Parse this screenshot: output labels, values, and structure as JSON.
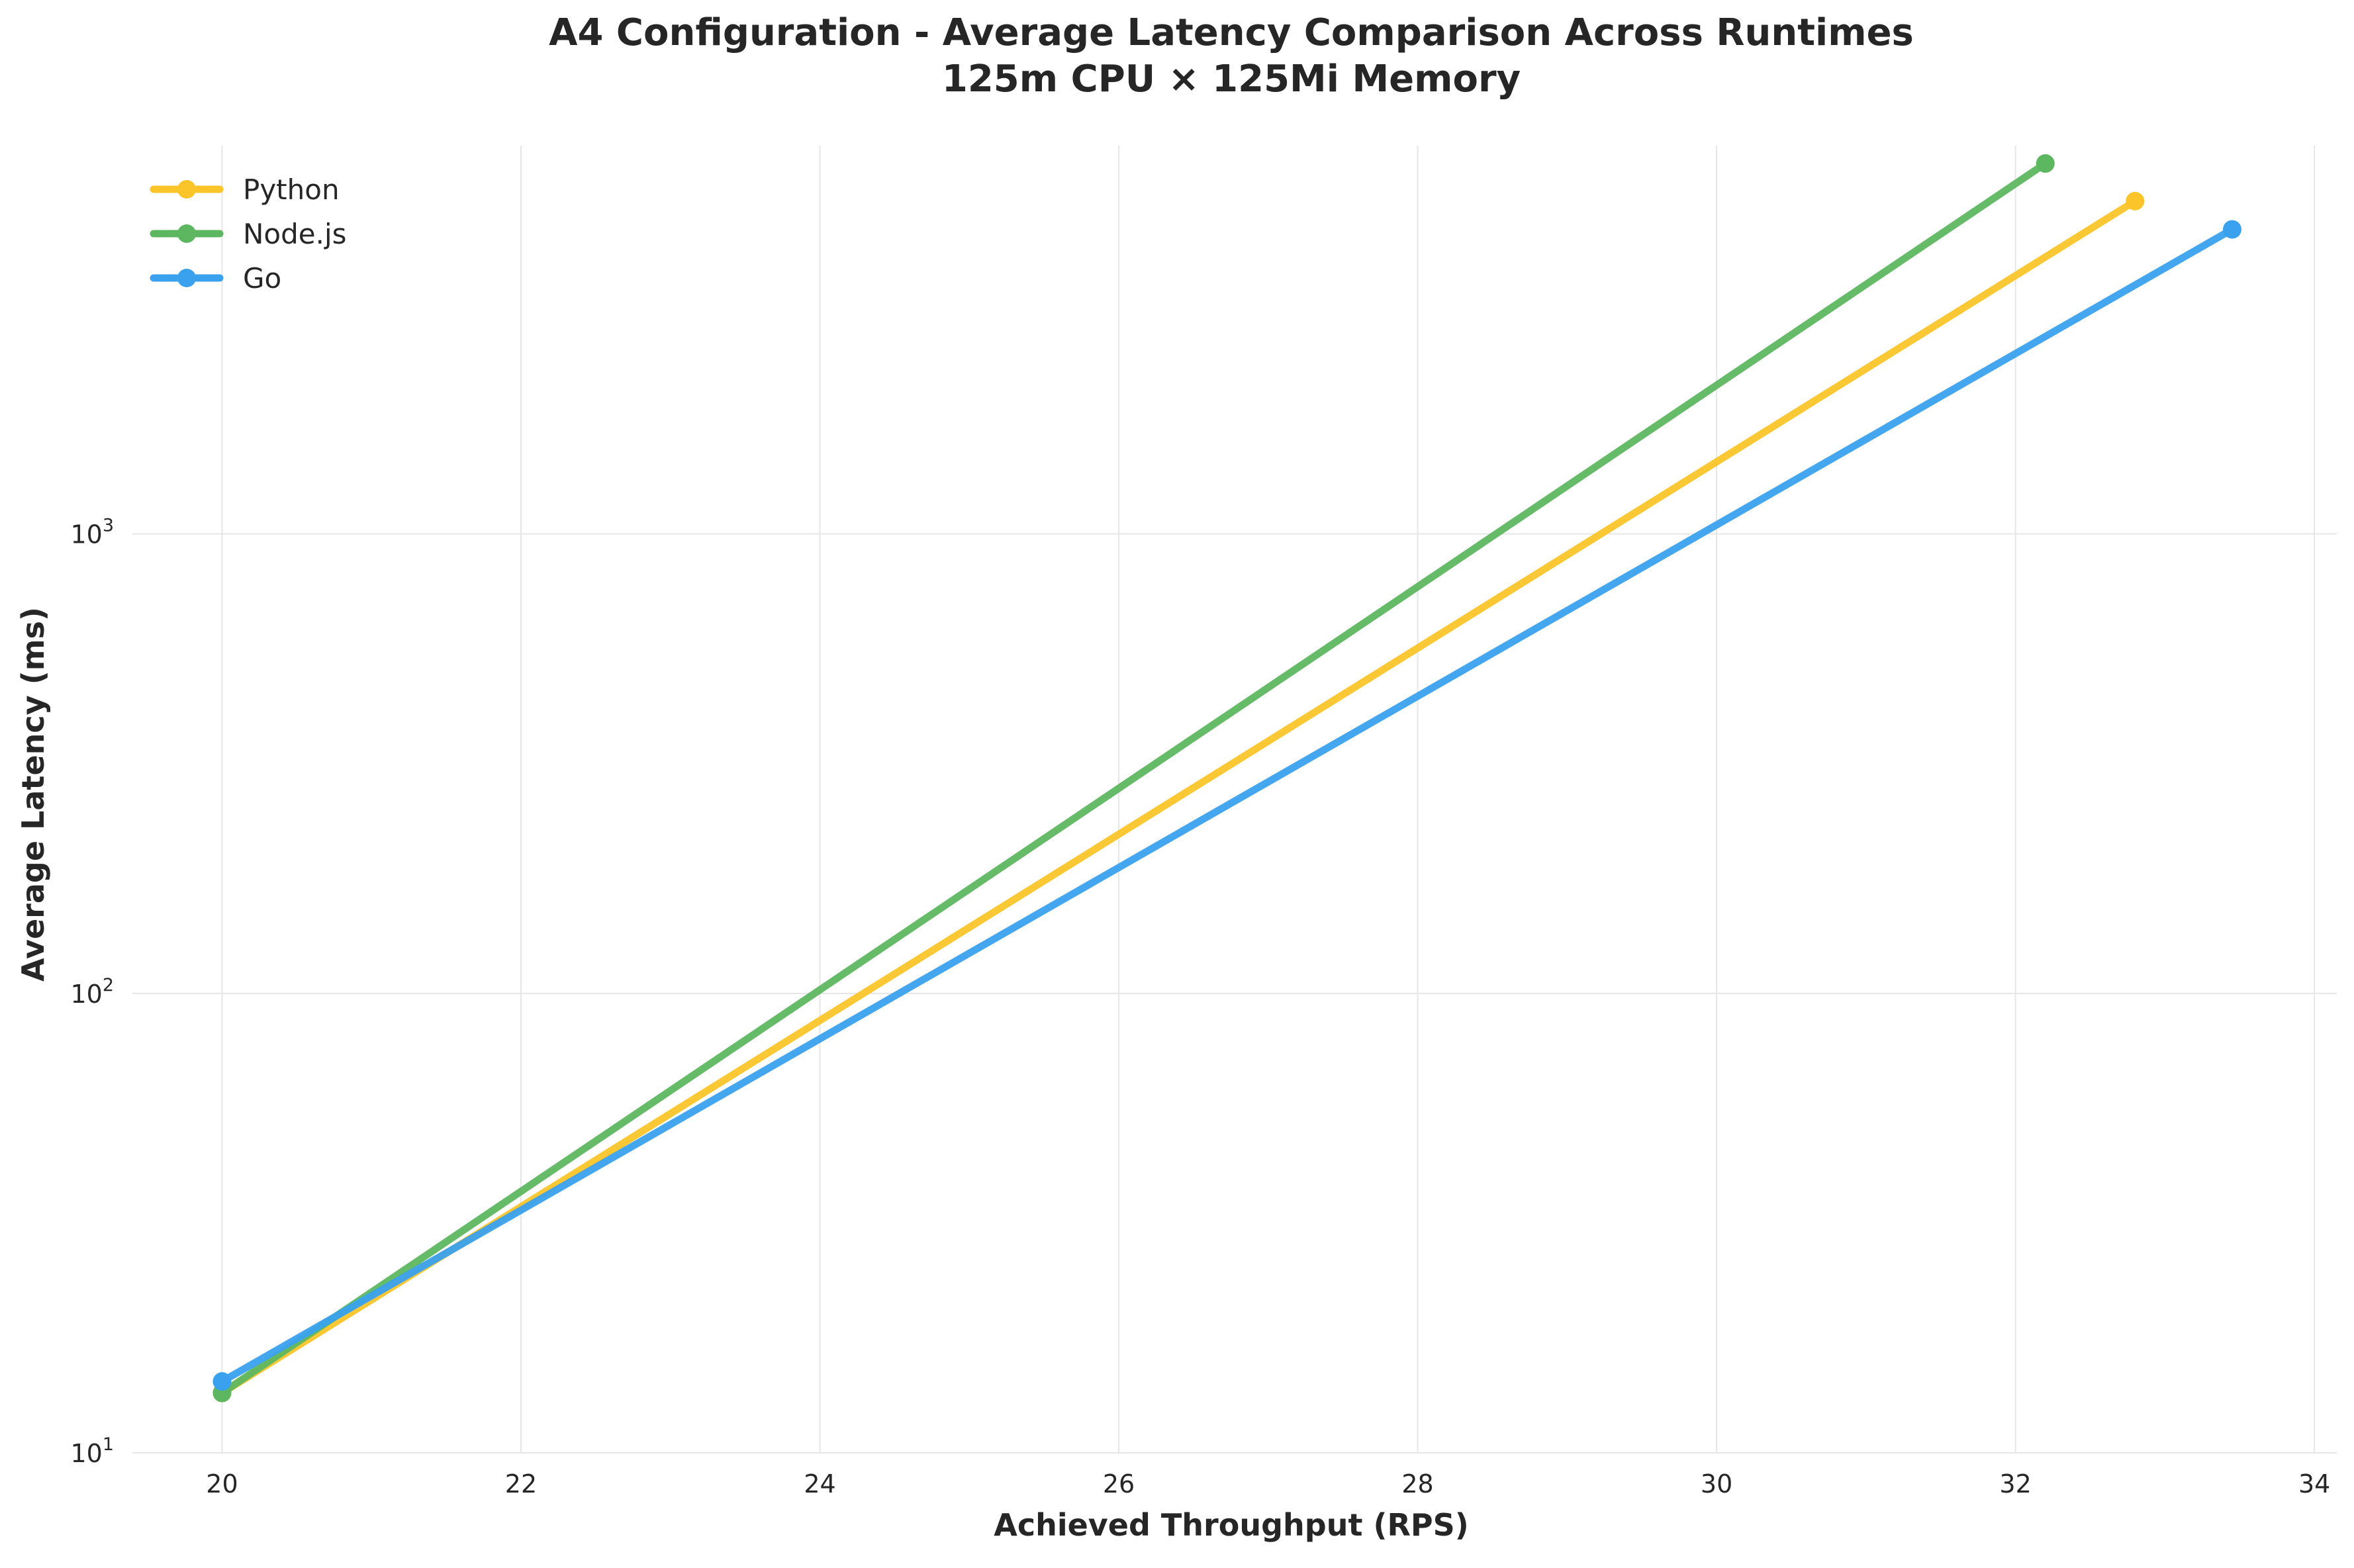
{
  "chart_data": {
    "type": "line",
    "title": "A4 Configuration - Average Latency Comparison Across Runtimes",
    "subtitle": "125m CPU × 125Mi Memory",
    "xlabel": "Achieved Throughput (RPS)",
    "ylabel": "Average Latency (ms)",
    "xlim": [
      19.4,
      34.15
    ],
    "ylim": [
      10,
      7000
    ],
    "yscale": "log",
    "xticks": [
      20,
      22,
      24,
      26,
      28,
      30,
      32,
      34
    ],
    "xtick_labels": [
      "20",
      "22",
      "24",
      "26",
      "28",
      "30",
      "32",
      "34"
    ],
    "yticks": [
      10,
      100,
      1000
    ],
    "ytick_labels": [
      {
        "base": "10",
        "exp": "1"
      },
      {
        "base": "10",
        "exp": "2"
      },
      {
        "base": "10",
        "exp": "3"
      }
    ],
    "grid": true,
    "legend_position": "top-left",
    "series": [
      {
        "name": "Python",
        "color": "#FBC52A",
        "x": [
          20.0,
          32.8
        ],
        "y": [
          13.5,
          5300
        ]
      },
      {
        "name": "Node.js",
        "color": "#5DB760",
        "x": [
          20.0,
          32.2
        ],
        "y": [
          13.5,
          6400
        ]
      },
      {
        "name": "Go",
        "color": "#3AA1EE",
        "x": [
          20.0,
          33.45
        ],
        "y": [
          14.3,
          4600
        ]
      }
    ]
  }
}
